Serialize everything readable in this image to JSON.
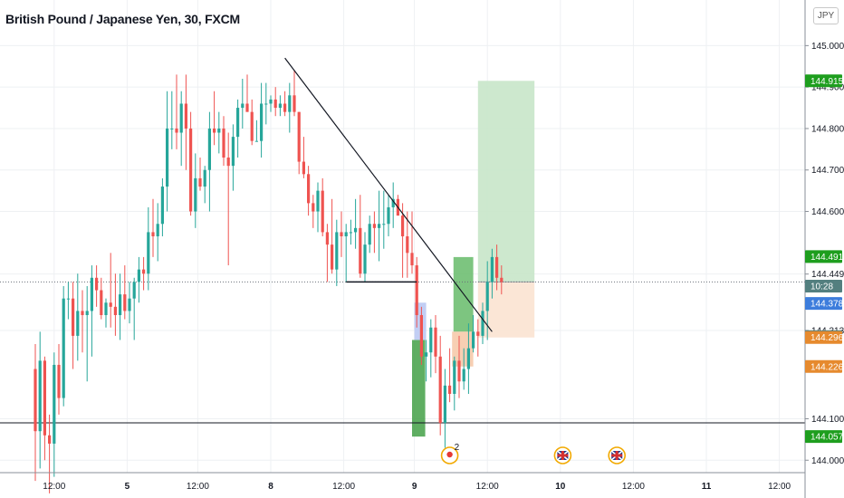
{
  "header": {
    "title": "British Pound / Japanese Yen, 30, FXCM",
    "currency_button": "JPY"
  },
  "colors": {
    "up": "#26a69a",
    "down": "#ef5350",
    "grid": "#eef0f3",
    "text": "#131722",
    "profit_zone": "#c8e6c9",
    "loss_zone": "#fbe3d2",
    "green_label": "#1e9e1e",
    "blue_label": "#3d7ddc",
    "teal_label": "#537f7f",
    "orange_label": "#e68a2e"
  },
  "icons": [
    "pin-icon",
    "uk-flag-icon"
  ],
  "chart_data": {
    "type": "candlestick",
    "title": "British Pound / Japanese Yen, 30, FXCM",
    "ylim": [
      143.97,
      145.11
    ],
    "grid": true,
    "x_ticks": [
      "12:00",
      "5",
      "12:00",
      "8",
      "12:00",
      "9",
      "12:00",
      "10",
      "12:00",
      "11",
      "12:00"
    ],
    "y_ticks": [
      "145.000",
      "144.900",
      "144.800",
      "144.700",
      "144.600",
      "144.449",
      "144.313",
      "144.100",
      "144.000"
    ],
    "price_labels": [
      {
        "value": 144.915,
        "text": "144.915",
        "color": "#1e9e1e"
      },
      {
        "value": 144.491,
        "text": "144.491",
        "color": "#1e9e1e"
      },
      {
        "value": 144.42,
        "text": "10:28",
        "color": "#537f7f"
      },
      {
        "value": 144.378,
        "text": "144.378",
        "color": "#3d7ddc"
      },
      {
        "value": 144.298,
        "text": "144.298",
        "color": "#537f7f"
      },
      {
        "value": 144.296,
        "text": "144.296",
        "color": "#e68a2e"
      },
      {
        "value": 144.226,
        "text": "144.226",
        "color": "#e68a2e"
      },
      {
        "value": 144.057,
        "text": "144.057",
        "color": "#1e9e1e"
      }
    ],
    "current_price": 144.43,
    "horizontal_levels": [
      144.09,
      144.43
    ],
    "trendline": {
      "from": [
        53,
        144.97
      ],
      "to": [
        97,
        144.31
      ]
    },
    "neckline": {
      "from": [
        66,
        144.43
      ],
      "to": [
        81,
        144.43
      ]
    },
    "position": {
      "entry": 144.43,
      "target": 144.915,
      "stop": 144.296,
      "x_start": 94,
      "x_end": 106
    },
    "zones": [
      {
        "type": "demand",
        "x0": 80,
        "x1": 82.8,
        "y0": 144.057,
        "y1": 144.29,
        "color": "#43a047"
      },
      {
        "type": "blue",
        "x0": 80.5,
        "x1": 83,
        "y0": 144.29,
        "y1": 144.38,
        "color": "#b7c6f2"
      },
      {
        "type": "green",
        "x0": 88.8,
        "x1": 93,
        "y0": 144.31,
        "y1": 144.49,
        "color": "#66bb6a"
      },
      {
        "type": "orange",
        "x0": 88.5,
        "x1": 93,
        "y0": 144.226,
        "y1": 144.31,
        "color": "#f6c7a6"
      }
    ],
    "events": [
      {
        "type": "pin",
        "label": "2",
        "x": 95
      },
      {
        "type": "uk-flag",
        "x": 119
      },
      {
        "type": "uk-flag",
        "x": 130.5
      }
    ],
    "candles": [
      [
        144.22,
        144.28,
        143.95,
        144.07
      ],
      [
        144.07,
        144.31,
        143.98,
        144.24
      ],
      [
        144.24,
        144.25,
        144.0,
        144.06
      ],
      [
        144.06,
        144.11,
        143.92,
        144.04
      ],
      [
        144.04,
        144.26,
        143.96,
        144.23
      ],
      [
        144.23,
        144.28,
        144.11,
        144.15
      ],
      [
        144.15,
        144.42,
        144.13,
        144.39
      ],
      [
        144.39,
        144.43,
        144.34,
        144.39
      ],
      [
        144.39,
        144.43,
        144.22,
        144.3
      ],
      [
        144.3,
        144.45,
        144.24,
        144.36
      ],
      [
        144.36,
        144.41,
        144.26,
        144.35
      ],
      [
        144.35,
        144.42,
        144.19,
        144.36
      ],
      [
        144.36,
        144.47,
        144.25,
        144.44
      ],
      [
        144.44,
        144.47,
        144.37,
        144.41
      ],
      [
        144.41,
        144.44,
        144.34,
        144.35
      ],
      [
        144.35,
        144.39,
        144.32,
        144.38
      ],
      [
        144.38,
        144.5,
        144.32,
        144.37
      ],
      [
        144.37,
        144.45,
        144.3,
        144.35
      ],
      [
        144.35,
        144.45,
        144.29,
        144.4
      ],
      [
        144.4,
        144.47,
        144.34,
        144.36
      ],
      [
        144.36,
        144.43,
        144.33,
        144.39
      ],
      [
        144.39,
        144.44,
        144.29,
        144.43
      ],
      [
        144.43,
        144.49,
        144.38,
        144.46
      ],
      [
        144.46,
        144.49,
        144.41,
        144.45
      ],
      [
        144.45,
        144.61,
        144.41,
        144.55
      ],
      [
        144.55,
        144.63,
        144.49,
        144.54
      ],
      [
        144.54,
        144.62,
        144.48,
        144.57
      ],
      [
        144.57,
        144.68,
        144.54,
        144.66
      ],
      [
        144.66,
        144.89,
        144.6,
        144.8
      ],
      [
        144.8,
        144.89,
        144.75,
        144.8
      ],
      [
        144.8,
        144.93,
        144.75,
        144.79
      ],
      [
        144.79,
        144.89,
        144.71,
        144.86
      ],
      [
        144.86,
        144.93,
        144.7,
        144.8
      ],
      [
        144.8,
        144.84,
        144.59,
        144.6
      ],
      [
        144.6,
        144.74,
        144.56,
        144.68
      ],
      [
        144.68,
        144.73,
        144.65,
        144.66
      ],
      [
        144.66,
        144.71,
        144.62,
        144.7
      ],
      [
        144.7,
        144.84,
        144.6,
        144.8
      ],
      [
        144.8,
        144.89,
        144.76,
        144.79
      ],
      [
        144.79,
        144.84,
        144.74,
        144.8
      ],
      [
        144.8,
        144.83,
        144.71,
        144.73
      ],
      [
        144.73,
        144.79,
        144.47,
        144.71
      ],
      [
        144.71,
        144.81,
        144.65,
        144.78
      ],
      [
        144.78,
        144.87,
        144.73,
        144.85
      ],
      [
        144.85,
        144.92,
        144.8,
        144.86
      ],
      [
        144.86,
        144.93,
        144.84,
        144.84
      ],
      [
        144.84,
        144.87,
        144.76,
        144.77
      ],
      [
        144.77,
        144.82,
        144.77,
        144.77
      ],
      [
        144.77,
        144.91,
        144.73,
        144.86
      ],
      [
        144.86,
        144.91,
        144.81,
        144.86
      ],
      [
        144.86,
        144.88,
        144.84,
        144.87
      ],
      [
        144.87,
        144.9,
        144.83,
        144.85
      ],
      [
        144.85,
        144.88,
        144.83,
        144.86
      ],
      [
        144.86,
        144.89,
        144.83,
        144.84
      ],
      [
        144.84,
        144.91,
        144.79,
        144.88
      ],
      [
        144.88,
        144.94,
        144.83,
        144.84
      ],
      [
        144.84,
        144.84,
        144.69,
        144.72
      ],
      [
        144.72,
        144.78,
        144.68,
        144.69
      ],
      [
        144.69,
        144.71,
        144.59,
        144.62
      ],
      [
        144.62,
        144.64,
        144.56,
        144.6
      ],
      [
        144.6,
        144.67,
        144.55,
        144.65
      ],
      [
        144.65,
        144.68,
        144.54,
        144.55
      ],
      [
        144.55,
        144.57,
        144.43,
        144.52
      ],
      [
        144.52,
        144.63,
        144.45,
        144.46
      ],
      [
        144.46,
        144.58,
        144.42,
        144.55
      ],
      [
        144.55,
        144.6,
        144.49,
        144.54
      ],
      [
        144.54,
        144.57,
        144.43,
        144.55
      ],
      [
        144.55,
        144.58,
        144.52,
        144.55
      ],
      [
        144.55,
        144.63,
        144.51,
        144.56
      ],
      [
        144.56,
        144.64,
        144.44,
        144.45
      ],
      [
        144.45,
        144.55,
        144.43,
        144.52
      ],
      [
        144.52,
        144.59,
        144.5,
        144.57
      ],
      [
        144.57,
        144.6,
        144.5,
        144.56
      ],
      [
        144.56,
        144.65,
        144.48,
        144.57
      ],
      [
        144.57,
        144.65,
        144.51,
        144.57
      ],
      [
        144.57,
        144.64,
        144.54,
        144.61
      ],
      [
        144.61,
        144.67,
        144.56,
        144.63
      ],
      [
        144.63,
        144.64,
        144.59,
        144.59
      ],
      [
        144.59,
        144.62,
        144.44,
        144.54
      ],
      [
        144.54,
        144.6,
        144.44,
        144.5
      ],
      [
        144.5,
        144.6,
        144.45,
        144.47
      ],
      [
        144.47,
        144.49,
        144.32,
        144.35
      ],
      [
        144.35,
        144.37,
        144.23,
        144.25
      ],
      [
        144.25,
        144.29,
        144.19,
        144.26
      ],
      [
        144.26,
        144.34,
        144.2,
        144.32
      ],
      [
        144.32,
        144.35,
        144.21,
        144.25
      ],
      [
        144.25,
        144.3,
        144.06,
        144.09
      ],
      [
        144.09,
        144.22,
        144.03,
        144.18
      ],
      [
        144.18,
        144.27,
        144.14,
        144.16
      ],
      [
        144.16,
        144.25,
        144.12,
        144.24
      ],
      [
        144.24,
        144.3,
        144.15,
        144.19
      ],
      [
        144.19,
        144.27,
        144.17,
        144.22
      ],
      [
        144.22,
        144.33,
        144.16,
        144.27
      ],
      [
        144.27,
        144.35,
        144.26,
        144.31
      ],
      [
        144.31,
        144.34,
        144.25,
        144.3
      ],
      [
        144.3,
        144.38,
        144.28,
        144.36
      ],
      [
        144.36,
        144.48,
        144.29,
        144.43
      ],
      [
        144.43,
        144.51,
        144.39,
        144.49
      ],
      [
        144.49,
        144.52,
        144.41,
        144.44
      ],
      [
        144.44,
        144.47,
        144.4,
        144.43
      ]
    ],
    "candle_x_offset": 7
  }
}
